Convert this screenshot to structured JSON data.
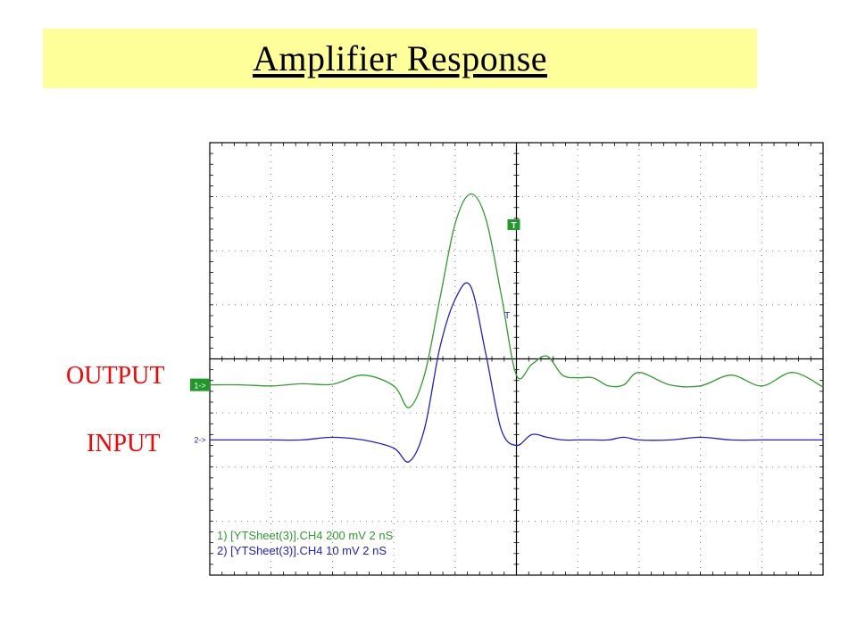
{
  "title": "Amplifier Response",
  "labels": {
    "output": "OUTPUT",
    "input": "INPUT"
  },
  "colors": {
    "banner": "#ffff99",
    "label": "#ff0000",
    "output_trace": "#2e9e2e",
    "input_trace": "#2020d0",
    "marker_green": "#1f9a2a",
    "grid": "#000000"
  },
  "chart_data": {
    "type": "line",
    "grid": true,
    "grid_divisions": {
      "x": 10,
      "y": 8
    },
    "x": [
      -10,
      -9,
      -8,
      -7,
      -6,
      -5,
      -4,
      -3.5,
      -3,
      -2.5,
      -2,
      -1.5,
      -1,
      -0.5,
      0,
      0.5,
      1,
      1.5,
      2,
      2.5,
      3,
      3.5,
      4,
      5,
      6,
      7,
      8,
      9,
      10
    ],
    "series": [
      {
        "marker": "1->",
        "label": "1) [YTSheet(3)].CH4  200 mV   2 nS",
        "values": [
          -0.48,
          -0.48,
          -0.5,
          -0.46,
          -0.47,
          -0.3,
          -0.5,
          -0.9,
          -0.3,
          1.1,
          2.5,
          3.05,
          2.6,
          1.2,
          -0.3,
          -0.1,
          0.05,
          -0.3,
          -0.35,
          -0.35,
          -0.5,
          -0.48,
          -0.25,
          -0.48,
          -0.5,
          -0.3,
          -0.5,
          -0.25,
          -0.52
        ]
      },
      {
        "marker": "2->",
        "label": "2) [YTSheet(3)].CH4  10 mV   2 nS",
        "values": [
          -1.5,
          -1.5,
          -1.5,
          -1.5,
          -1.45,
          -1.5,
          -1.65,
          -1.9,
          -1.3,
          0.2,
          1.1,
          1.35,
          0.1,
          -1.3,
          -1.6,
          -1.4,
          -1.45,
          -1.5,
          -1.5,
          -1.5,
          -1.5,
          -1.45,
          -1.5,
          -1.5,
          -1.45,
          -1.5,
          -1.5,
          -1.5,
          -1.5
        ]
      }
    ]
  }
}
